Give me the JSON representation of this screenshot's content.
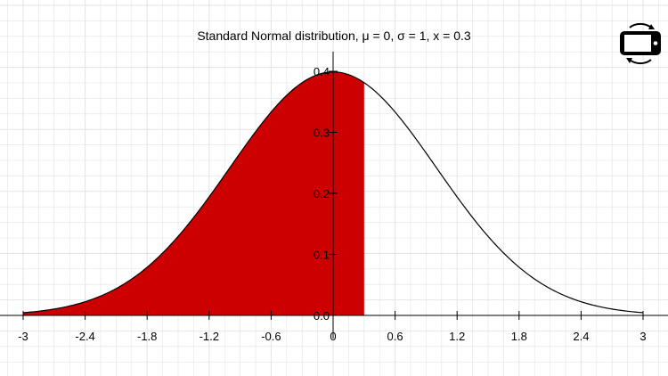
{
  "app": {
    "rotate_button_icon": "rotate-device-icon"
  },
  "colors": {
    "fill": "#cc0000",
    "grid": "#e3e3e3",
    "axis": "#000000",
    "curve": "#000000",
    "background": "#ffffff"
  },
  "chart_data": {
    "type": "area",
    "title": "Standard Normal distribution, μ = 0, σ = 1, x = 0.3",
    "mu": 0,
    "sigma": 1,
    "x_value": 0.3,
    "shaded_region": "left of x",
    "xlim": [
      -3,
      3
    ],
    "ylim": [
      0,
      0.4
    ],
    "x_ticks": [
      "-3",
      "-2.4",
      "-1.8",
      "-1.2",
      "-0.6",
      "0",
      "0.6",
      "1.2",
      "1.8",
      "2.4",
      "3"
    ],
    "y_ticks": [
      "0.0",
      "0.1",
      "0.2",
      "0.3",
      "0.4"
    ],
    "grid": true
  }
}
